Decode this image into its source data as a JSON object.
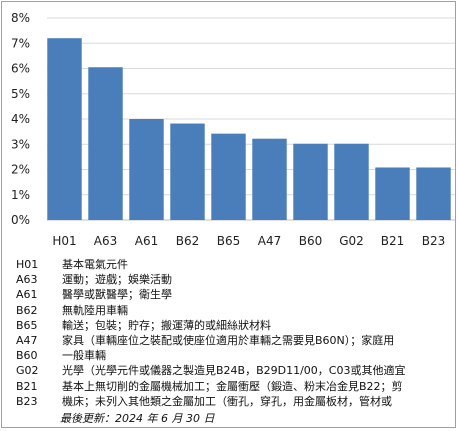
{
  "chart_data": {
    "type": "bar",
    "categories": [
      "H01",
      "A63",
      "A61",
      "B62",
      "B65",
      "A47",
      "B60",
      "G02",
      "B21",
      "B23"
    ],
    "values": [
      7.2,
      6.05,
      4.0,
      3.82,
      3.42,
      3.22,
      3.02,
      3.02,
      2.08,
      2.08
    ],
    "ylim": [
      0,
      8
    ],
    "yticks": [
      "0%",
      "1%",
      "2%",
      "3%",
      "4%",
      "5%",
      "6%",
      "7%",
      "8%"
    ],
    "grid": true,
    "bar_color": "#4a7ebb"
  },
  "legend": [
    {
      "code": "H01",
      "desc": "基本電氣元件"
    },
    {
      "code": "A63",
      "desc": "運動；遊戲；娛樂活動"
    },
    {
      "code": "A61",
      "desc": "醫學或獸醫學；衛生學"
    },
    {
      "code": "B62",
      "desc": "無軌陸用車輛"
    },
    {
      "code": "B65",
      "desc": "輸送；包裝；貯存；搬運薄的或細絲狀材料"
    },
    {
      "code": "A47",
      "desc": "家具（車輛座位之裝配或使座位適用於車輛之需要見B60N）；家庭用"
    },
    {
      "code": "B60",
      "desc": "一般車輛"
    },
    {
      "code": "G02",
      "desc": "光學（光學元件或儀器之製造見B24B，B29D11/00，C03或其他適宜"
    },
    {
      "code": "B21",
      "desc": "基本上無切削的金屬機械加工；金屬衝壓（鍛造、粉末冶金見B22；剪"
    },
    {
      "code": "B23",
      "desc": "機床；未列入其他類之金屬加工（衝孔，穿孔，用金屬板材，管材或"
    }
  ],
  "footer": {
    "updated": "最後更新：2024 年 6 月 30 日"
  }
}
